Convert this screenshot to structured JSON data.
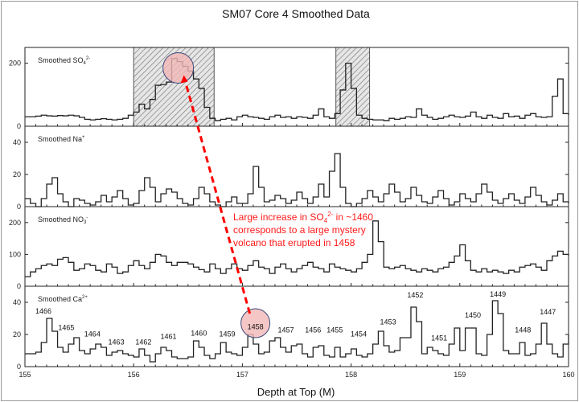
{
  "chart_data": {
    "type": "line",
    "title": "SM07 Core 4 Smoothed Data",
    "xlabel": "Depth at Top (M)",
    "xlim": [
      155,
      160
    ],
    "x_ticks": [
      "155",
      "156",
      "157",
      "158",
      "159",
      "160"
    ],
    "x_start": 155,
    "x_step": 0.05,
    "grid": false,
    "panels": [
      {
        "label": "Smoothed SO",
        "label_sub": "4",
        "label_sup": "2-",
        "ylim": [
          0,
          250
        ],
        "y_ticks": [
          "0",
          "200"
        ],
        "y_tick_values": [
          0,
          200
        ],
        "values": [
          30,
          30,
          32,
          35,
          33,
          32,
          34,
          33,
          35,
          33,
          28,
          22,
          20,
          22,
          24,
          22,
          20,
          22,
          25,
          35,
          45,
          70,
          55,
          85,
          130,
          132,
          140,
          215,
          205,
          190,
          175,
          150,
          120,
          60,
          25,
          18,
          22,
          25,
          20,
          30,
          35,
          30,
          28,
          25,
          22,
          30,
          35,
          28,
          30,
          25,
          30,
          28,
          25,
          35,
          55,
          30,
          25,
          40,
          115,
          200,
          120,
          35,
          25,
          22,
          20,
          20,
          18,
          25,
          22,
          25,
          30,
          28,
          55,
          35,
          28,
          22,
          25,
          30,
          35,
          30,
          28,
          32,
          45,
          30,
          25,
          35,
          28,
          25,
          40,
          30,
          32,
          25,
          35,
          40,
          30,
          28,
          30,
          95,
          150,
          40,
          35
        ],
        "highlight_ranges": [
          [
            156.0,
            156.74
          ],
          [
            157.86,
            158.17
          ]
        ],
        "circle": {
          "x": 156.41,
          "y": 185
        }
      },
      {
        "label": "Smoothed Na",
        "label_sub": "",
        "label_sup": "+",
        "ylim": [
          0,
          50
        ],
        "y_ticks": [
          "0",
          "20",
          "40"
        ],
        "y_tick_values": [
          0,
          20,
          40
        ],
        "values": [
          5,
          2,
          0,
          5,
          14,
          18,
          8,
          3,
          0,
          5,
          4,
          2,
          1,
          3,
          7,
          3,
          6,
          10,
          5,
          1,
          2,
          10,
          18,
          12,
          3,
          8,
          11,
          9,
          5,
          2,
          1,
          5,
          12,
          8,
          3,
          1,
          0,
          3,
          6,
          2,
          2,
          8,
          25,
          12,
          3,
          4,
          7,
          5,
          2,
          4,
          9,
          5,
          2,
          6,
          14,
          6,
          22,
          33,
          12,
          2,
          0,
          2,
          5,
          10,
          6,
          3,
          8,
          14,
          9,
          3,
          5,
          12,
          7,
          3,
          2,
          6,
          10,
          5,
          1,
          3,
          8,
          5,
          3,
          8,
          14,
          9,
          4,
          2,
          5,
          8,
          4,
          2,
          6,
          12,
          7,
          3,
          1,
          4,
          8,
          3,
          2
        ]
      },
      {
        "label": "Smoothed NO",
        "label_sub": "3",
        "label_sup": "-",
        "ylim": [
          0,
          250
        ],
        "y_ticks": [
          "0",
          "100",
          "200"
        ],
        "y_tick_values": [
          0,
          100,
          200
        ],
        "values": [
          30,
          45,
          55,
          65,
          70,
          65,
          85,
          90,
          75,
          50,
          55,
          70,
          65,
          50,
          45,
          70,
          60,
          40,
          45,
          65,
          80,
          65,
          55,
          75,
          100,
          95,
          75,
          65,
          75,
          75,
          70,
          60,
          52,
          45,
          70,
          55,
          40,
          55,
          70,
          55,
          50,
          65,
          80,
          60,
          55,
          40,
          60,
          70,
          55,
          45,
          55,
          65,
          75,
          60,
          55,
          45,
          70,
          60,
          55,
          50,
          45,
          55,
          75,
          100,
          205,
          140,
          60,
          55,
          60,
          65,
          55,
          50,
          45,
          55,
          50,
          45,
          55,
          60,
          75,
          95,
          130,
          80,
          50,
          45,
          55,
          45,
          50,
          45,
          40,
          50,
          45,
          60,
          65,
          70,
          60,
          50,
          80,
          95,
          110,
          100,
          95
        ]
      },
      {
        "label": "Smoothed Ca",
        "label_sub": "",
        "label_sup": "2+",
        "ylim": [
          0,
          50
        ],
        "y_ticks": [
          "0",
          "20",
          "40"
        ],
        "y_tick_values": [
          0,
          20,
          40
        ],
        "values": [
          8,
          8,
          9,
          15,
          30,
          22,
          12,
          9,
          14,
          18,
          10,
          8,
          11,
          14,
          12,
          7,
          9,
          10,
          8,
          7,
          6,
          11,
          7,
          3,
          8,
          12,
          10,
          6,
          5,
          5,
          6,
          16,
          12,
          7,
          5,
          8,
          15,
          9,
          8,
          7,
          12,
          20,
          14,
          8,
          9,
          16,
          18,
          12,
          9,
          13,
          14,
          8,
          6,
          12,
          13,
          7,
          6,
          12,
          6,
          8,
          11,
          7,
          6,
          8,
          14,
          22,
          13,
          9,
          10,
          18,
          18,
          37,
          28,
          8,
          12,
          10,
          8,
          7,
          14,
          24,
          10,
          24,
          24,
          8,
          7,
          20,
          41,
          33,
          10,
          8,
          8,
          15,
          7,
          8,
          14,
          27,
          14,
          8,
          6,
          14,
          20
        ],
        "circle": {
          "x": 157.12,
          "y": 27
        },
        "year_labels": [
          {
            "text": "1466",
            "x": 155.17,
            "y": 34.4
          },
          {
            "text": "1465",
            "x": 155.38,
            "y": 24.3
          },
          {
            "text": "1464",
            "x": 155.62,
            "y": 20.3
          },
          {
            "text": "1463",
            "x": 155.84,
            "y": 15.2
          },
          {
            "text": "1462",
            "x": 156.09,
            "y": 15.2
          },
          {
            "text": "1461",
            "x": 156.32,
            "y": 18.7
          },
          {
            "text": "1460",
            "x": 156.6,
            "y": 20.8
          },
          {
            "text": "1459",
            "x": 156.86,
            "y": 20.3
          },
          {
            "text": "1458",
            "x": 157.12,
            "y": 24.8
          },
          {
            "text": "1457",
            "x": 157.4,
            "y": 22.8
          },
          {
            "text": "1456",
            "x": 157.65,
            "y": 22.8
          },
          {
            "text": "1455",
            "x": 157.85,
            "y": 22.8
          },
          {
            "text": "1454",
            "x": 158.07,
            "y": 20.3
          },
          {
            "text": "1453",
            "x": 158.34,
            "y": 27.8
          },
          {
            "text": "1452",
            "x": 158.59,
            "y": 44.6
          },
          {
            "text": "1451",
            "x": 158.81,
            "y": 17.7
          },
          {
            "text": "1450",
            "x": 159.12,
            "y": 31.9
          },
          {
            "text": "1449",
            "x": 159.35,
            "y": 45.0
          },
          {
            "text": "1448",
            "x": 159.58,
            "y": 22.8
          },
          {
            "text": "1447",
            "x": 159.81,
            "y": 33.9
          }
        ]
      }
    ],
    "annotation": {
      "lines": [
        "Large increase in SO",
        "corresponds to a large mystery",
        "volcano that erupted in 1458"
      ],
      "sub": "4",
      "sup": "2-",
      "line1_rest": " in ~1460",
      "color": "#ff1a1a"
    },
    "colors": {
      "line": "#222222",
      "circle_fill": "#f2b8b8",
      "circle_stroke": "#3a4a7a",
      "hatch": "#777777",
      "arrow": "#ff0000"
    }
  }
}
